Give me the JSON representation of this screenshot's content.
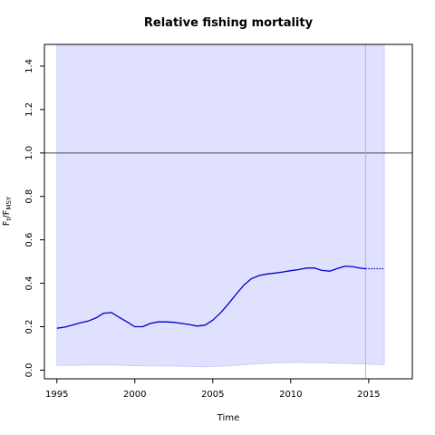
{
  "chart_data": {
    "type": "line",
    "title": "Relative fishing mortality",
    "xlabel": "Time",
    "ylabel": {
      "main": "F",
      "sub_t": "t",
      "sep": "/F",
      "sub_msy": "MSY"
    },
    "xlim": [
      1994.2,
      2017.8
    ],
    "ylim": [
      -0.04,
      1.5
    ],
    "x_ticks": [
      1995,
      2000,
      2005,
      2010,
      2015
    ],
    "y_ticks": [
      0.0,
      0.2,
      0.4,
      0.6,
      0.8,
      1.0,
      1.2,
      1.4
    ],
    "y_tick_labels": [
      "0.0",
      "0.2",
      "0.4",
      "0.6",
      "0.8",
      "1.0",
      "1.2",
      "1.4"
    ],
    "reference_line": 1.0,
    "last_observation_x": 2014.8,
    "colors": {
      "band": "#e0e0ff",
      "band_edge": "#c8c8ff",
      "line": "#0000cc",
      "reference": "#555555",
      "vline": "#b8b8b8"
    },
    "series": [
      {
        "style": "solid",
        "x": [
          1995,
          1995.5,
          1996,
          1996.5,
          1997,
          1997.5,
          1998,
          1998.5,
          1999,
          1999.5,
          2000,
          2000.5,
          2001,
          2001.5,
          2002,
          2002.5,
          2003,
          2003.5,
          2004,
          2004.5,
          2005,
          2005.5,
          2006,
          2006.5,
          2007,
          2007.5,
          2008,
          2008.5,
          2009,
          2009.5,
          2010,
          2010.5,
          2011,
          2011.5,
          2012,
          2012.5,
          2013,
          2013.5,
          2014,
          2014.5,
          2014.8
        ],
        "y": [
          0.193,
          0.198,
          0.208,
          0.218,
          0.226,
          0.24,
          0.262,
          0.265,
          0.243,
          0.222,
          0.2,
          0.2,
          0.215,
          0.222,
          0.222,
          0.22,
          0.215,
          0.21,
          0.203,
          0.207,
          0.23,
          0.264,
          0.305,
          0.35,
          0.392,
          0.422,
          0.436,
          0.443,
          0.447,
          0.452,
          0.458,
          0.463,
          0.47,
          0.471,
          0.459,
          0.456,
          0.468,
          0.479,
          0.476,
          0.469,
          0.467
        ]
      },
      {
        "style": "dotted",
        "x": [
          2014.8,
          2015.5,
          2016
        ],
        "y": [
          0.467,
          0.467,
          0.467
        ]
      }
    ],
    "band": {
      "x": [
        1995,
        1997,
        1998.5,
        2000,
        2003,
        2004.5,
        2006,
        2008,
        2010,
        2012,
        2014,
        2016
      ],
      "upper": [
        1.5,
        1.5,
        1.5,
        1.5,
        1.5,
        1.5,
        1.5,
        1.5,
        1.5,
        1.5,
        1.5,
        1.5
      ],
      "lower": [
        0.021,
        0.023,
        0.024,
        0.02,
        0.018,
        0.015,
        0.02,
        0.03,
        0.036,
        0.034,
        0.03,
        0.025
      ]
    }
  }
}
